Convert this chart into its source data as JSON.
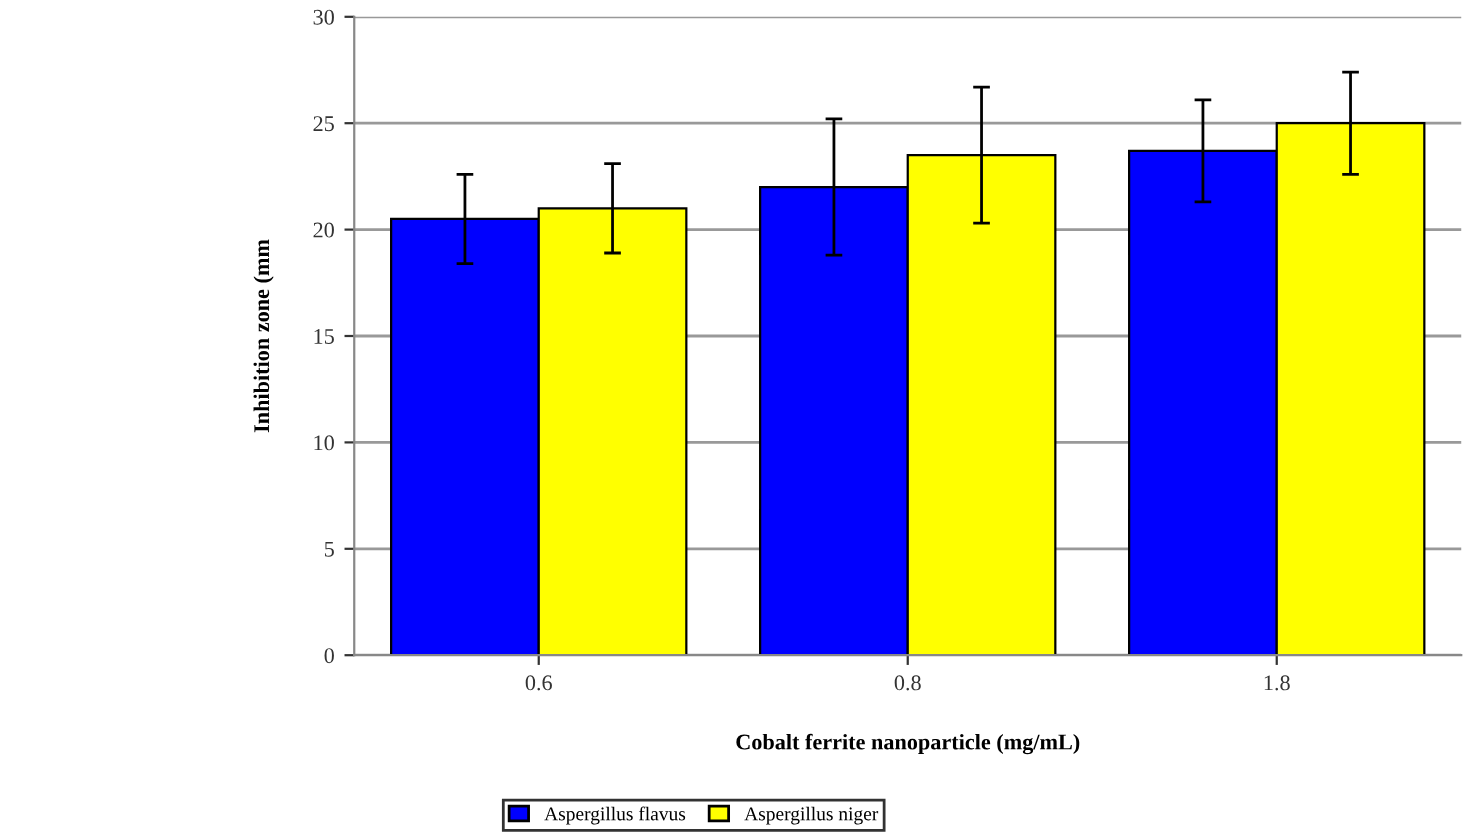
{
  "chart_data": {
    "type": "bar",
    "xlabel": "Cobalt ferrite nanoparticle (mg/mL)",
    "ylabel": "Inhibition zone (mm",
    "categories": [
      "0.6",
      "0.8",
      "1.8"
    ],
    "series": [
      {
        "name": "Aspergillus flavus",
        "color": "#0000ff",
        "values": [
          20.5,
          22.0,
          23.7
        ],
        "errors": [
          2.1,
          3.2,
          2.4
        ]
      },
      {
        "name": "Aspergillus niger",
        "color": "#ffff00",
        "values": [
          21.0,
          23.5,
          25.0
        ],
        "errors": [
          2.1,
          3.2,
          2.4
        ]
      }
    ],
    "ylim": [
      0,
      30
    ],
    "yticks": [
      0,
      5,
      10,
      15,
      20,
      25,
      30
    ],
    "grid": "y",
    "legend": "bottom"
  }
}
